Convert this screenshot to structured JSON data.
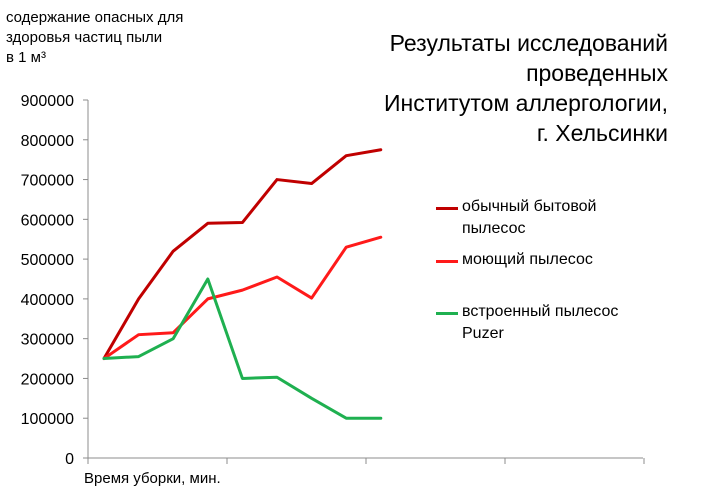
{
  "chart_data": {
    "type": "line",
    "title_lines": [
      "Результаты исследований",
      "проведенных",
      "Институтом аллергологии,",
      "г. Хельсинки"
    ],
    "ylabel_lines": [
      "содержание опасных для",
      "здоровья частиц пыли",
      "в 1 м³"
    ],
    "xlabel": "Время уборки, мин.",
    "ylim": [
      0,
      900000
    ],
    "y_ticks": [
      "0",
      "100000",
      "200000",
      "300000",
      "400000",
      "500000",
      "600000",
      "700000",
      "800000",
      "900000"
    ],
    "grid": false,
    "legend_position": "right",
    "series": [
      {
        "name_lines": [
          "обычный бытовой",
          "пылесос"
        ],
        "color": "#c00000",
        "values": [
          250000,
          400000,
          520000,
          590000,
          592000,
          700000,
          690000,
          760000,
          775000
        ]
      },
      {
        "name_lines": [
          "моющий пылесос"
        ],
        "color": "#ff1a1a",
        "values": [
          250000,
          310000,
          315000,
          400000,
          422000,
          455000,
          402000,
          530000,
          555000
        ]
      },
      {
        "name_lines": [
          "встроенный пылесос",
          "Puzer"
        ],
        "color": "#1fb050",
        "values": [
          250000,
          255000,
          300000,
          450000,
          200000,
          203000,
          150000,
          100000,
          100000
        ]
      }
    ]
  }
}
